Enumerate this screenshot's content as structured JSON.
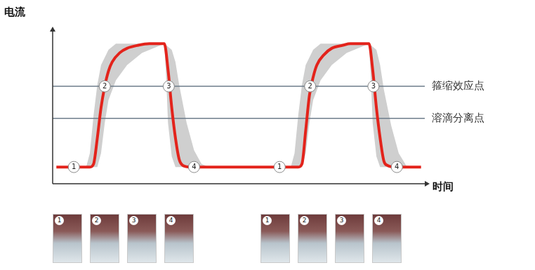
{
  "chart_data": {
    "type": "line",
    "y_label": "电流",
    "x_label": "时间",
    "xlim": [
      0,
      100
    ],
    "ylim": [
      0,
      100
    ],
    "tick_labels": false,
    "grid": false,
    "series": [
      {
        "color": "#e3231b",
        "x": [
          1,
          10,
          11,
          12,
          13,
          14,
          15,
          16,
          18,
          20,
          23,
          26,
          30,
          31,
          32,
          33,
          34,
          35,
          37,
          66,
          67,
          68,
          69,
          70,
          71,
          73,
          75,
          78,
          80,
          85,
          86,
          87,
          88,
          89,
          90,
          92,
          99
        ],
        "values": [
          11,
          11,
          13,
          30,
          50,
          64,
          74,
          80,
          86,
          89,
          91,
          92,
          92,
          75,
          50,
          30,
          16,
          12,
          11,
          11,
          13,
          35,
          58,
          70,
          78,
          85,
          89,
          91,
          92,
          92,
          75,
          50,
          30,
          15,
          12,
          11,
          11
        ]
      }
    ],
    "band": {
      "color": "#cfcfcf",
      "upper": {
        "x": [
          1,
          9,
          10,
          11,
          12,
          13,
          15,
          17,
          30,
          32,
          33,
          34,
          36,
          38,
          40,
          42,
          64,
          65,
          66,
          67,
          68,
          70,
          72,
          85,
          87,
          88,
          89,
          91,
          93,
          95,
          97,
          99
        ],
        "values": [
          11,
          11,
          20,
          45,
          65,
          78,
          88,
          92,
          92,
          88,
          80,
          65,
          40,
          22,
          13,
          11,
          11,
          20,
          45,
          65,
          78,
          88,
          92,
          92,
          88,
          78,
          62,
          38,
          20,
          12,
          11,
          11
        ]
      },
      "lower": {
        "x": [
          1,
          12,
          13,
          14,
          15,
          17,
          20,
          24,
          28,
          30,
          30.5,
          31,
          32,
          33,
          67,
          68,
          69,
          70,
          72,
          75,
          79,
          83,
          85,
          85.5,
          86,
          87,
          88,
          99
        ],
        "values": [
          11,
          11,
          20,
          40,
          55,
          68,
          78,
          86,
          90,
          92,
          70,
          40,
          18,
          11,
          11,
          20,
          40,
          55,
          68,
          78,
          86,
          90,
          92,
          70,
          40,
          18,
          11,
          11
        ]
      }
    },
    "reference_lines": [
      {
        "value": 64,
        "label": "箍缩效应点",
        "color": "#6d7d8b"
      },
      {
        "value": 43,
        "label": "溶滴分离点",
        "color": "#6d7d8b"
      }
    ],
    "annotations": [
      {
        "x": 5.7,
        "y": 11,
        "label": "1"
      },
      {
        "x": 14,
        "y": 64,
        "label": "2"
      },
      {
        "x": 31.2,
        "y": 64,
        "label": "3"
      },
      {
        "x": 38,
        "y": 11,
        "label": "4"
      },
      {
        "x": 61,
        "y": 11,
        "label": "1"
      },
      {
        "x": 69.2,
        "y": 64,
        "label": "2"
      },
      {
        "x": 86.2,
        "y": 64,
        "label": "3"
      },
      {
        "x": 92.5,
        "y": 11,
        "label": "4"
      }
    ],
    "frames": [
      "1",
      "2",
      "3",
      "4",
      "1",
      "2",
      "3",
      "4"
    ]
  }
}
